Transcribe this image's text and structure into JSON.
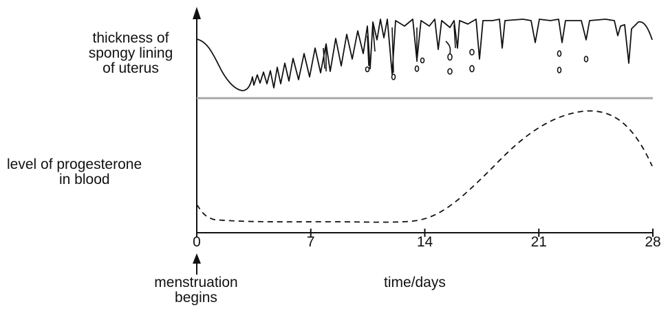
{
  "labels": {
    "uterus_line1": "thickness of",
    "uterus_line2": "spongy lining",
    "uterus_line3": "of uterus",
    "progesterone_line1": "level of progesterone",
    "progesterone_line2": "in blood",
    "menstruation_line1": "menstruation",
    "menstruation_line2": "begins",
    "x_axis_label": "time/days"
  },
  "axis": {
    "x_range": [
      0,
      28
    ],
    "ticks": [
      "0",
      "7",
      "14",
      "21",
      "28"
    ],
    "tick_values": [
      0,
      7,
      14,
      21,
      28
    ]
  },
  "colors": {
    "line": "#111111",
    "divider": "#a8a8a8"
  }
}
